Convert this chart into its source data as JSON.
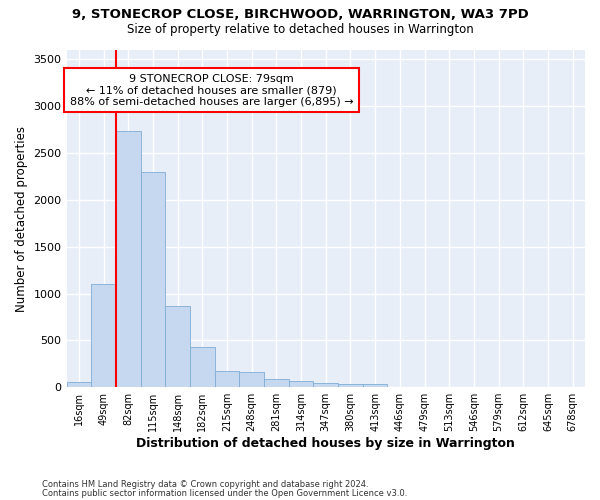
{
  "title1": "9, STONECROP CLOSE, BIRCHWOOD, WARRINGTON, WA3 7PD",
  "title2": "Size of property relative to detached houses in Warrington",
  "xlabel": "Distribution of detached houses by size in Warrington",
  "ylabel": "Number of detached properties",
  "categories": [
    "16sqm",
    "49sqm",
    "82sqm",
    "115sqm",
    "148sqm",
    "182sqm",
    "215sqm",
    "248sqm",
    "281sqm",
    "314sqm",
    "347sqm",
    "380sqm",
    "413sqm",
    "446sqm",
    "479sqm",
    "513sqm",
    "546sqm",
    "579sqm",
    "612sqm",
    "645sqm",
    "678sqm"
  ],
  "values": [
    55,
    1100,
    2730,
    2300,
    870,
    430,
    170,
    165,
    90,
    65,
    50,
    35,
    30,
    0,
    0,
    0,
    0,
    0,
    0,
    0,
    0
  ],
  "bar_color": "#c5d8f0",
  "bar_edge_color": "#7eadd4",
  "red_line_x": 2.0,
  "annotation_line1": "9 STONECROP CLOSE: 79sqm",
  "annotation_line2": "← 11% of detached houses are smaller (879)",
  "annotation_line3": "88% of semi-detached houses are larger (6,895) →",
  "ylim": [
    0,
    3600
  ],
  "yticks": [
    0,
    500,
    1000,
    1500,
    2000,
    2500,
    3000,
    3500
  ],
  "bg_color": "#e8eef8",
  "grid_color": "#ffffff",
  "footer1": "Contains HM Land Registry data © Crown copyright and database right 2024.",
  "footer2": "Contains public sector information licensed under the Open Government Licence v3.0."
}
